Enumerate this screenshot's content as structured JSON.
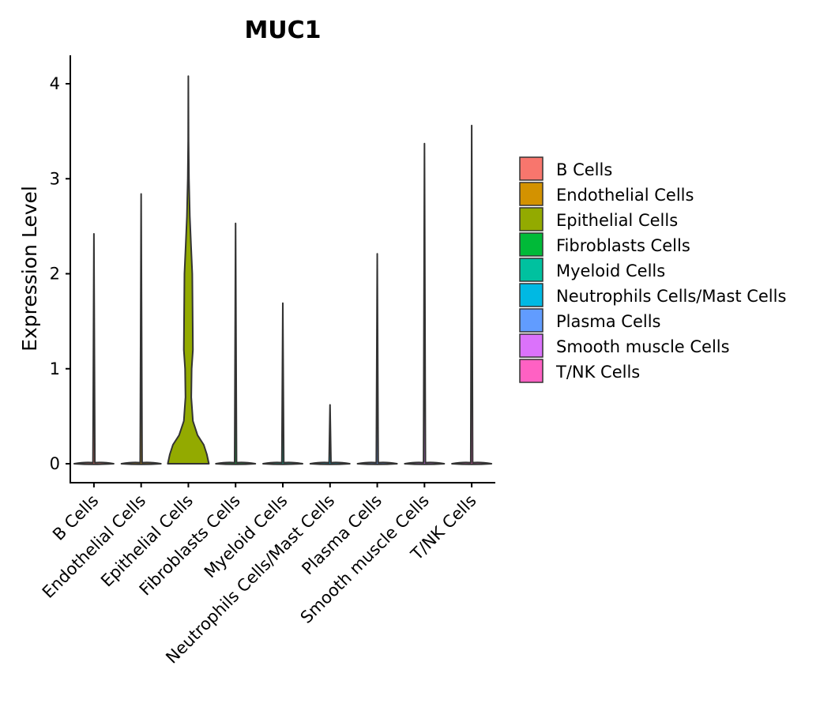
{
  "chart_data": {
    "type": "violin",
    "title": "MUC1",
    "xlabel": "",
    "ylabel": "Expression Level",
    "ylim": [
      -0.2,
      4.3
    ],
    "yticks": [
      0,
      1,
      2,
      3,
      4
    ],
    "categories": [
      "B Cells",
      "Endothelial Cells",
      "Epithelial Cells",
      "Fibroblasts Cells",
      "Myeloid Cells",
      "Neutrophils Cells/Mast Cells",
      "Plasma Cells",
      "Smooth muscle Cells",
      "T/NK Cells"
    ],
    "colors": [
      "#F8766D",
      "#D39200",
      "#93AA00",
      "#00BA38",
      "#00C19F",
      "#00B9E3",
      "#619CFF",
      "#DB72FB",
      "#FF61C3"
    ],
    "max_values": [
      2.42,
      2.84,
      4.08,
      2.53,
      1.69,
      0.62,
      2.21,
      3.37,
      3.56
    ],
    "series": [
      {
        "name": "Epithelial Cells",
        "density_profile": [
          [
            0,
            1.0
          ],
          [
            0.1,
            0.9
          ],
          [
            0.2,
            0.75
          ],
          [
            0.3,
            0.45
          ],
          [
            0.45,
            0.22
          ],
          [
            0.7,
            0.14
          ],
          [
            1.0,
            0.16
          ],
          [
            1.2,
            0.22
          ],
          [
            1.5,
            0.21
          ],
          [
            2.0,
            0.19
          ],
          [
            2.3,
            0.13
          ],
          [
            2.6,
            0.07
          ],
          [
            3.0,
            0.03
          ],
          [
            3.4,
            0.01
          ],
          [
            4.08,
            0.0
          ]
        ]
      }
    ],
    "legend": {
      "position": "right",
      "entries": [
        "B Cells",
        "Endothelial Cells",
        "Epithelial Cells",
        "Fibroblasts Cells",
        "Myeloid Cells",
        "Neutrophils Cells/Mast Cells",
        "Plasma Cells",
        "Smooth muscle Cells",
        "T/NK Cells"
      ]
    }
  }
}
